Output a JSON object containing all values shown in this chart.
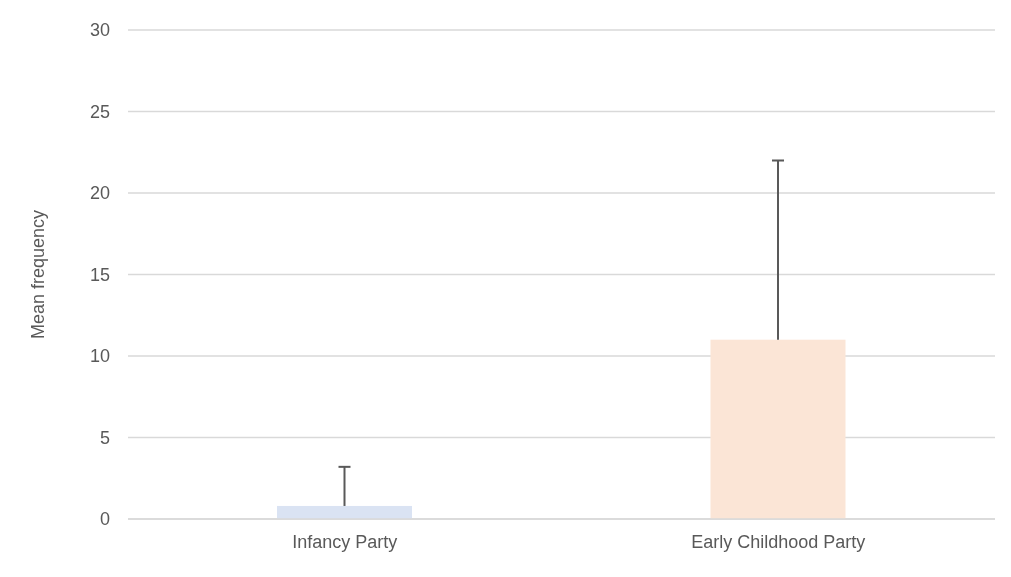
{
  "chart_data": {
    "type": "bar",
    "ylabel": "Mean frequency",
    "categories": [
      "Infancy Party",
      "Early Childhood Party"
    ],
    "values": [
      0.8,
      11
    ],
    "colors": [
      "#dae3f3",
      "#fbe5d6"
    ],
    "errors": [
      [
        0.8,
        3.2
      ],
      [
        11,
        22
      ]
    ],
    "ylim": [
      0,
      30
    ],
    "yticks": [
      0,
      5,
      10,
      15,
      20,
      25,
      30
    ],
    "grid": "y"
  }
}
